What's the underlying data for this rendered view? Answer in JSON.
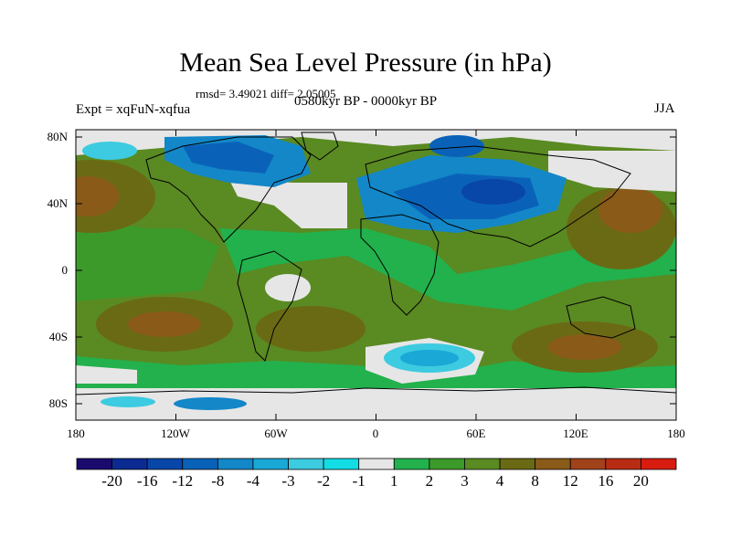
{
  "title": "Mean Sea Level Pressure (in hPa)",
  "stats": "rmsd= 3.49021 diff= 2.05005",
  "expt": "Expt = xqFuN-xqfua",
  "period": "0580kyr BP - 0000kyr BP",
  "season": "JJA",
  "y_ticks": [
    "80N",
    "40N",
    "0",
    "40S",
    "80S"
  ],
  "x_ticks": [
    "180",
    "120W",
    "60W",
    "0",
    "60E",
    "120E",
    "180"
  ],
  "colorbar": {
    "labels": [
      "-20",
      "-16",
      "-12",
      "-8",
      "-4",
      "-3",
      "-2",
      "-1",
      "1",
      "2",
      "3",
      "4",
      "8",
      "12",
      "16",
      "20"
    ],
    "colors": [
      "#1a0a6e",
      "#0b2a92",
      "#0846a8",
      "#0a62b8",
      "#1387c8",
      "#1aa8d6",
      "#3ccbe0",
      "#12dde4",
      "#e6e6e6",
      "#22b14c",
      "#3c9a2a",
      "#5a8a22",
      "#6a6a14",
      "#8a5a18",
      "#a0421a",
      "#b92c14",
      "#d81c10"
    ]
  }
}
